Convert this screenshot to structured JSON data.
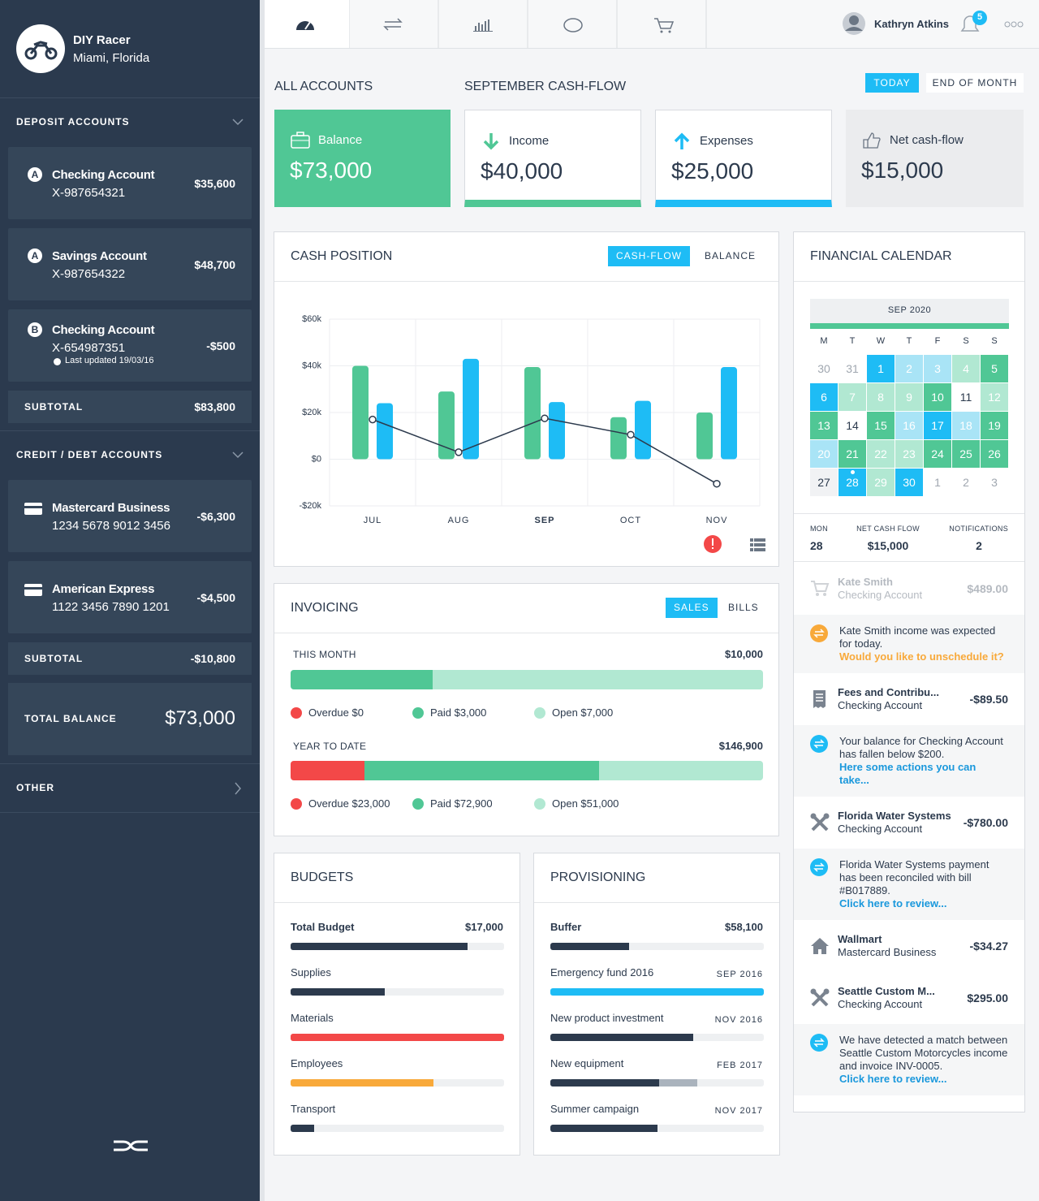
{
  "sidebar": {
    "company": {
      "name": "DIY Racer",
      "location": "Miami, Florida"
    },
    "deposit": {
      "title": "DEPOSIT ACCOUNTS",
      "accounts": [
        {
          "badge": "A",
          "name": "Checking Account",
          "number": "X-987654321",
          "amount": "$35,600"
        },
        {
          "badge": "A",
          "name": "Savings Account",
          "number": "X-987654322",
          "amount": "$48,700"
        },
        {
          "badge": "B",
          "name": "Checking Account",
          "number": "X-654987351",
          "amount": "-$500",
          "note": "Last updated 19/03/16"
        }
      ],
      "subtotal_label": "SUBTOTAL",
      "subtotal": "$83,800"
    },
    "credit": {
      "title": "CREDIT / DEBT ACCOUNTS",
      "accounts": [
        {
          "name": "Mastercard Business",
          "number": "1234 5678 9012 3456",
          "amount": "-$6,300"
        },
        {
          "name": "American Express",
          "number": "1122 3456 7890 1201",
          "amount": "-$4,500"
        }
      ],
      "subtotal_label": "SUBTOTAL",
      "subtotal": "-$10,800"
    },
    "total_label": "TOTAL BALANCE",
    "total": "$73,000",
    "other": "OTHER"
  },
  "topbar": {
    "user": "Kathryn Atkins",
    "notifications": "5"
  },
  "summary": {
    "accounts_title": "ALL ACCOUNTS",
    "cashflow_title": "SEPTEMBER CASH-FLOW",
    "buttons": [
      "TODAY",
      "END OF MONTH"
    ],
    "cards": [
      {
        "label": "Balance",
        "value": "$73,000"
      },
      {
        "label": "Income",
        "value": "$40,000"
      },
      {
        "label": "Expenses",
        "value": "$25,000"
      },
      {
        "label": "Net cash-flow",
        "value": "$15,000"
      }
    ]
  },
  "chart_data": {
    "type": "bar",
    "title": "CASH POSITION",
    "tabs": [
      "CASH-FLOW",
      "BALANCE"
    ],
    "categories": [
      "JUL",
      "AUG",
      "SEP",
      "OCT",
      "NOV"
    ],
    "highlight_index": 2,
    "series": [
      {
        "color": "#50c795",
        "values": [
          40000,
          29000,
          39500,
          18000,
          20000
        ]
      },
      {
        "color": "#1ebcf5",
        "values": [
          24000,
          43000,
          24500,
          25000,
          39500
        ]
      },
      {
        "type": "line",
        "color": "#2c3a4d",
        "values": [
          17000,
          3000,
          17500,
          10500,
          -10500
        ]
      }
    ],
    "ylim": [
      -20000,
      60000
    ],
    "yticks": [
      {
        "value": -20000,
        "label": "-$20k"
      },
      {
        "value": 0,
        "label": "$0"
      },
      {
        "value": 20000,
        "label": "$20k"
      },
      {
        "value": 40000,
        "label": "$40k"
      },
      {
        "value": 60000,
        "label": "$60k"
      }
    ],
    "grid": true
  },
  "invoicing": {
    "title": "INVOICING",
    "tabs": [
      "SALES",
      "BILLS"
    ],
    "periods": [
      {
        "label": "THIS MONTH",
        "total": 10000,
        "total_label": "$10,000",
        "segments": [
          {
            "label": "Overdue $0",
            "value": 0,
            "color": "#f34848"
          },
          {
            "label": "Paid $3,000",
            "value": 3000,
            "color": "#50c795"
          },
          {
            "label": "Open $7,000",
            "value": 7000,
            "color": "#b1e8d2"
          }
        ]
      },
      {
        "label": "YEAR TO DATE",
        "total": 146900,
        "total_label": "$146,900",
        "segments": [
          {
            "label": "Overdue $23,000",
            "value": 23000,
            "color": "#f34848"
          },
          {
            "label": "Paid $72,900",
            "value": 72900,
            "color": "#50c795"
          },
          {
            "label": "Open $51,000",
            "value": 51000,
            "color": "#b1e8d2"
          }
        ]
      }
    ]
  },
  "budgets": {
    "title": "BUDGETS",
    "items": [
      {
        "label": "Total Budget",
        "amount": "$17,000",
        "progress": 83,
        "color": "#2c3a4d"
      },
      {
        "label": "Supplies",
        "progress": 44,
        "color": "#2c3a4d"
      },
      {
        "label": "Materials",
        "progress": 100,
        "color": "#f34848"
      },
      {
        "label": "Employees",
        "progress": 67,
        "color": "#f8a93a"
      },
      {
        "label": "Transport",
        "progress": 11,
        "color": "#2c3a4d"
      }
    ]
  },
  "provisioning": {
    "title": "PROVISIONING",
    "items": [
      {
        "label": "Buffer",
        "amount": "$58,100",
        "progress": 37,
        "color": "#2c3a4d"
      },
      {
        "label": "Emergency fund 2016",
        "date": "SEP 2016",
        "progress": 100,
        "color": "#1ebcf5"
      },
      {
        "label": "New product investment",
        "date": "NOV 2016",
        "progress": 67,
        "color": "#2c3a4d"
      },
      {
        "label": "New equipment",
        "date": "FEB 2017",
        "progress": 51,
        "secondary": 69,
        "color": "#2c3a4d"
      },
      {
        "label": "Summer campaign",
        "date": "NOV 2017",
        "progress": 50,
        "color": "#2c3a4d"
      }
    ]
  },
  "calendar": {
    "title": "FINANCIAL CALENDAR",
    "month": "SEP 2020",
    "weekdays": [
      "M",
      "T",
      "W",
      "T",
      "F",
      "S",
      "S"
    ],
    "days": [
      [
        30,
        31,
        1,
        2,
        3,
        4,
        5
      ],
      [
        6,
        7,
        8,
        9,
        10,
        11,
        12
      ],
      [
        13,
        14,
        15,
        16,
        17,
        18,
        19
      ],
      [
        20,
        21,
        22,
        23,
        24,
        25,
        26
      ],
      [
        27,
        28,
        29,
        30,
        1,
        2,
        3
      ]
    ],
    "kinds": [
      [
        "out",
        "out",
        "blue",
        "lblue",
        "lblue",
        "lgreen",
        "green"
      ],
      [
        "blue",
        "lgreen",
        "lgreen",
        "lgreen",
        "green",
        "plain",
        "lgreen"
      ],
      [
        "green",
        "plain",
        "green",
        "lblue",
        "blue",
        "lblue",
        "green"
      ],
      [
        "lblue",
        "green",
        "lgreen",
        "lgreen",
        "green",
        "green",
        "green"
      ],
      [
        "gray",
        "blue",
        "lgreen",
        "blue",
        "out",
        "out",
        "out"
      ]
    ],
    "today": [
      4,
      1
    ],
    "stats": [
      {
        "label": "MON",
        "value": "28"
      },
      {
        "label": "NET CASH FLOW",
        "value": "$15,000"
      },
      {
        "label": "NOTIFICATIONS",
        "value": "2"
      }
    ],
    "feed": [
      {
        "kind": "transaction",
        "icon": "cart",
        "faded": true,
        "name": "Kate Smith",
        "account": "Checking Account",
        "amount": "$489.00"
      },
      {
        "kind": "alert",
        "color": "#f8a93a",
        "text": "Kate Smith income was expected for today.",
        "link": "Would you like to unschedule it?"
      },
      {
        "kind": "transaction",
        "icon": "receipt",
        "name": "Fees and Contribu...",
        "account": "Checking Account",
        "amount": "-$89.50"
      },
      {
        "kind": "alert",
        "color": "#1ebcf5",
        "text": "Your balance for Checking Account has fallen below $200.",
        "link": "Here some actions you can take..."
      },
      {
        "kind": "transaction",
        "icon": "tools",
        "name": "Florida Water Systems",
        "account": "Checking Account",
        "amount": "-$780.00"
      },
      {
        "kind": "alert",
        "color": "#1ebcf5",
        "text": "Florida Water Systems payment has been reconciled with bill #B017889.",
        "link": "Click here to review..."
      },
      {
        "kind": "transaction",
        "icon": "home",
        "name": "Wallmart",
        "account": "Mastercard Business",
        "amount": "-$34.27"
      },
      {
        "kind": "transaction",
        "icon": "tools",
        "name": "Seattle Custom M...",
        "account": "Checking Account",
        "amount": "$295.00"
      },
      {
        "kind": "alert",
        "color": "#1ebcf5",
        "text": "We have detected a match between Seattle Custom Motorcycles income and invoice INV-0005.",
        "link": "Click here to review..."
      }
    ]
  }
}
